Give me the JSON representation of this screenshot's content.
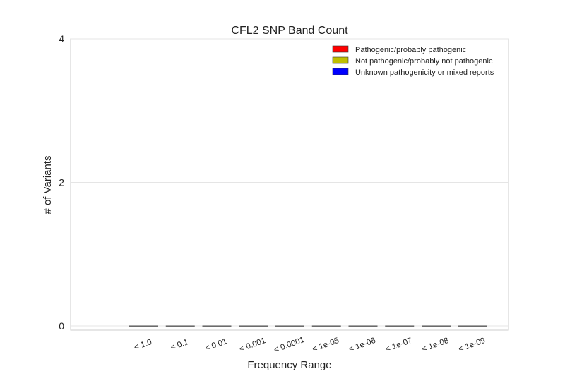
{
  "chart_data": {
    "type": "bar",
    "title": "CFL2 SNP Band Count",
    "xlabel": "Frequency Range",
    "ylabel": "# of Variants",
    "categories": [
      "< 1.0",
      "< 0.1",
      "< 0.01",
      "< 0.001",
      "< 0.0001",
      "< 1e-05",
      "< 1e-06",
      "< 1e-07",
      "< 1e-08",
      "< 1e-09"
    ],
    "series": [
      {
        "name": "Pathogenic/probably pathogenic",
        "color": "#ff0000",
        "values": [
          0,
          0,
          0,
          0,
          0,
          0,
          0,
          0,
          0,
          0
        ]
      },
      {
        "name": "Not pathogenic/probably not pathogenic",
        "color": "#bfbf00",
        "values": [
          0,
          0,
          0,
          0,
          0,
          0,
          0,
          0,
          0,
          0
        ]
      },
      {
        "name": "Unknown pathogenicity or mixed reports",
        "color": "#0000ff",
        "values": [
          0,
          0,
          0,
          0,
          0,
          0,
          0,
          0,
          0,
          0
        ]
      }
    ],
    "ylim": [
      0,
      4
    ],
    "yticks": [
      0,
      2,
      4
    ],
    "grid": true,
    "legend_position": "top-right"
  }
}
